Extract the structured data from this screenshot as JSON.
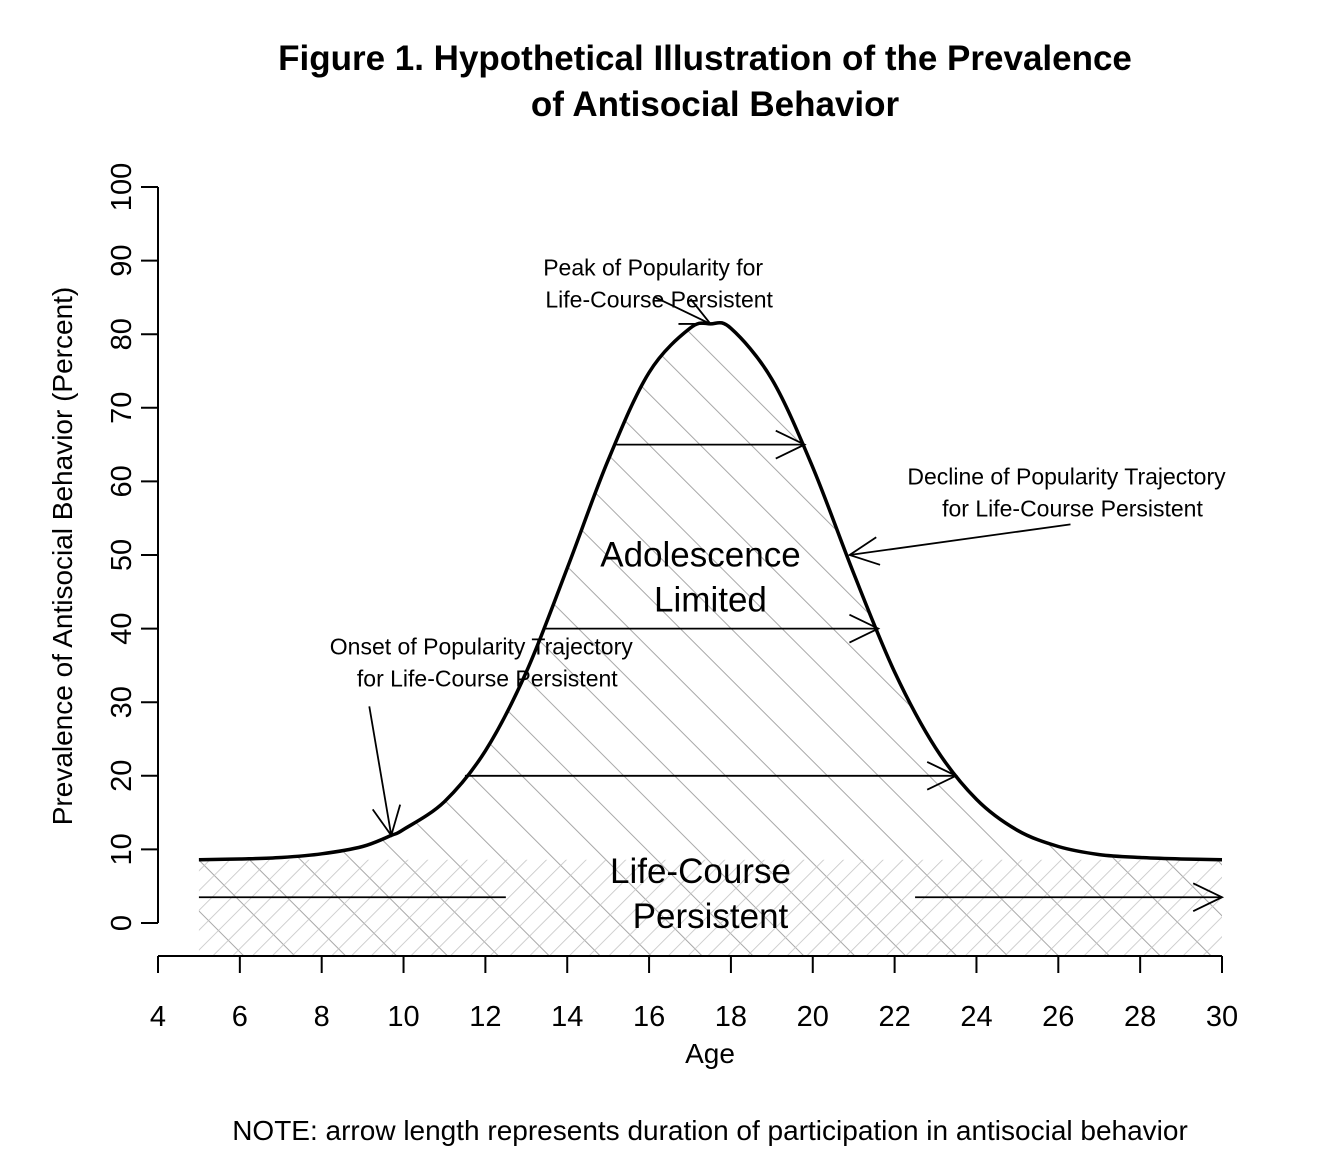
{
  "chart_data": {
    "type": "area",
    "title_lines": [
      "Figure 1. Hypothetical Illustration of the Prevalence",
      "of Antisocial Behavior"
    ],
    "xlabel": "Age",
    "ylabel": "Prevalence of Antisocial Behavior (Percent)",
    "xlim": [
      4,
      30
    ],
    "ylim": [
      0,
      100
    ],
    "x_ticks": [
      4,
      6,
      8,
      10,
      12,
      14,
      16,
      18,
      20,
      22,
      24,
      26,
      28,
      30
    ],
    "y_ticks": [
      0,
      10,
      20,
      30,
      40,
      50,
      60,
      70,
      80,
      90,
      100
    ],
    "grid": false,
    "curve": {
      "x": [
        5,
        6,
        7,
        8,
        9,
        9.7,
        10,
        11,
        12,
        13,
        14,
        15,
        16,
        17,
        17.5,
        18,
        19,
        20,
        21,
        22,
        23,
        24,
        25,
        26,
        27,
        28,
        29,
        30
      ],
      "y": [
        8.6,
        8.7,
        8.9,
        9.4,
        10.4,
        11.9,
        12.7,
        16.5,
        23.4,
        34.1,
        48.2,
        62.9,
        74.8,
        80.8,
        81.4,
        80.8,
        73.9,
        61.9,
        47.5,
        34.1,
        23.8,
        16.8,
        12.6,
        10.4,
        9.3,
        8.9,
        8.7,
        8.6
      ]
    },
    "regions": [
      {
        "label_lines": [
          "Adolescence",
          "Limited"
        ],
        "x": 17.5,
        "y": 47
      },
      {
        "label_lines": [
          "Life-Course",
          "Persistent"
        ],
        "x": 17.5,
        "y": 4
      }
    ],
    "duration_arrows": [
      {
        "x_start": 15.2,
        "x_end": 19.8,
        "y": 65
      },
      {
        "x_start": 13.4,
        "x_end": 21.6,
        "y": 40
      },
      {
        "x_start": 11.5,
        "x_end": 23.5,
        "y": 20
      },
      {
        "x_start": 5,
        "x_end": 12.5,
        "y": 3.5,
        "head": false
      },
      {
        "x_start": 22.5,
        "x_end": 30,
        "y": 3.5
      }
    ],
    "annotations": [
      {
        "text_lines": [
          "Peak of Popularity for",
          "Life-Course Persistent"
        ],
        "text_x": 16.1,
        "text_y": 88,
        "target_x": 17.5,
        "target_y": 81.4
      },
      {
        "text_lines": [
          "Decline of Popularity Trajectory",
          "for Life-Course Persistent"
        ],
        "text_x": 26.2,
        "text_y": 59.6,
        "target_x": 20.9,
        "target_y": 50
      },
      {
        "text_lines": [
          "Onset of Popularity Trajectory",
          "for Life-Course Persistent"
        ],
        "text_x": 11.9,
        "text_y": 36.5,
        "target_x": 9.7,
        "target_y": 11.9
      }
    ],
    "note": "NOTE: arrow length represents duration of participation in antisocial behavior"
  }
}
